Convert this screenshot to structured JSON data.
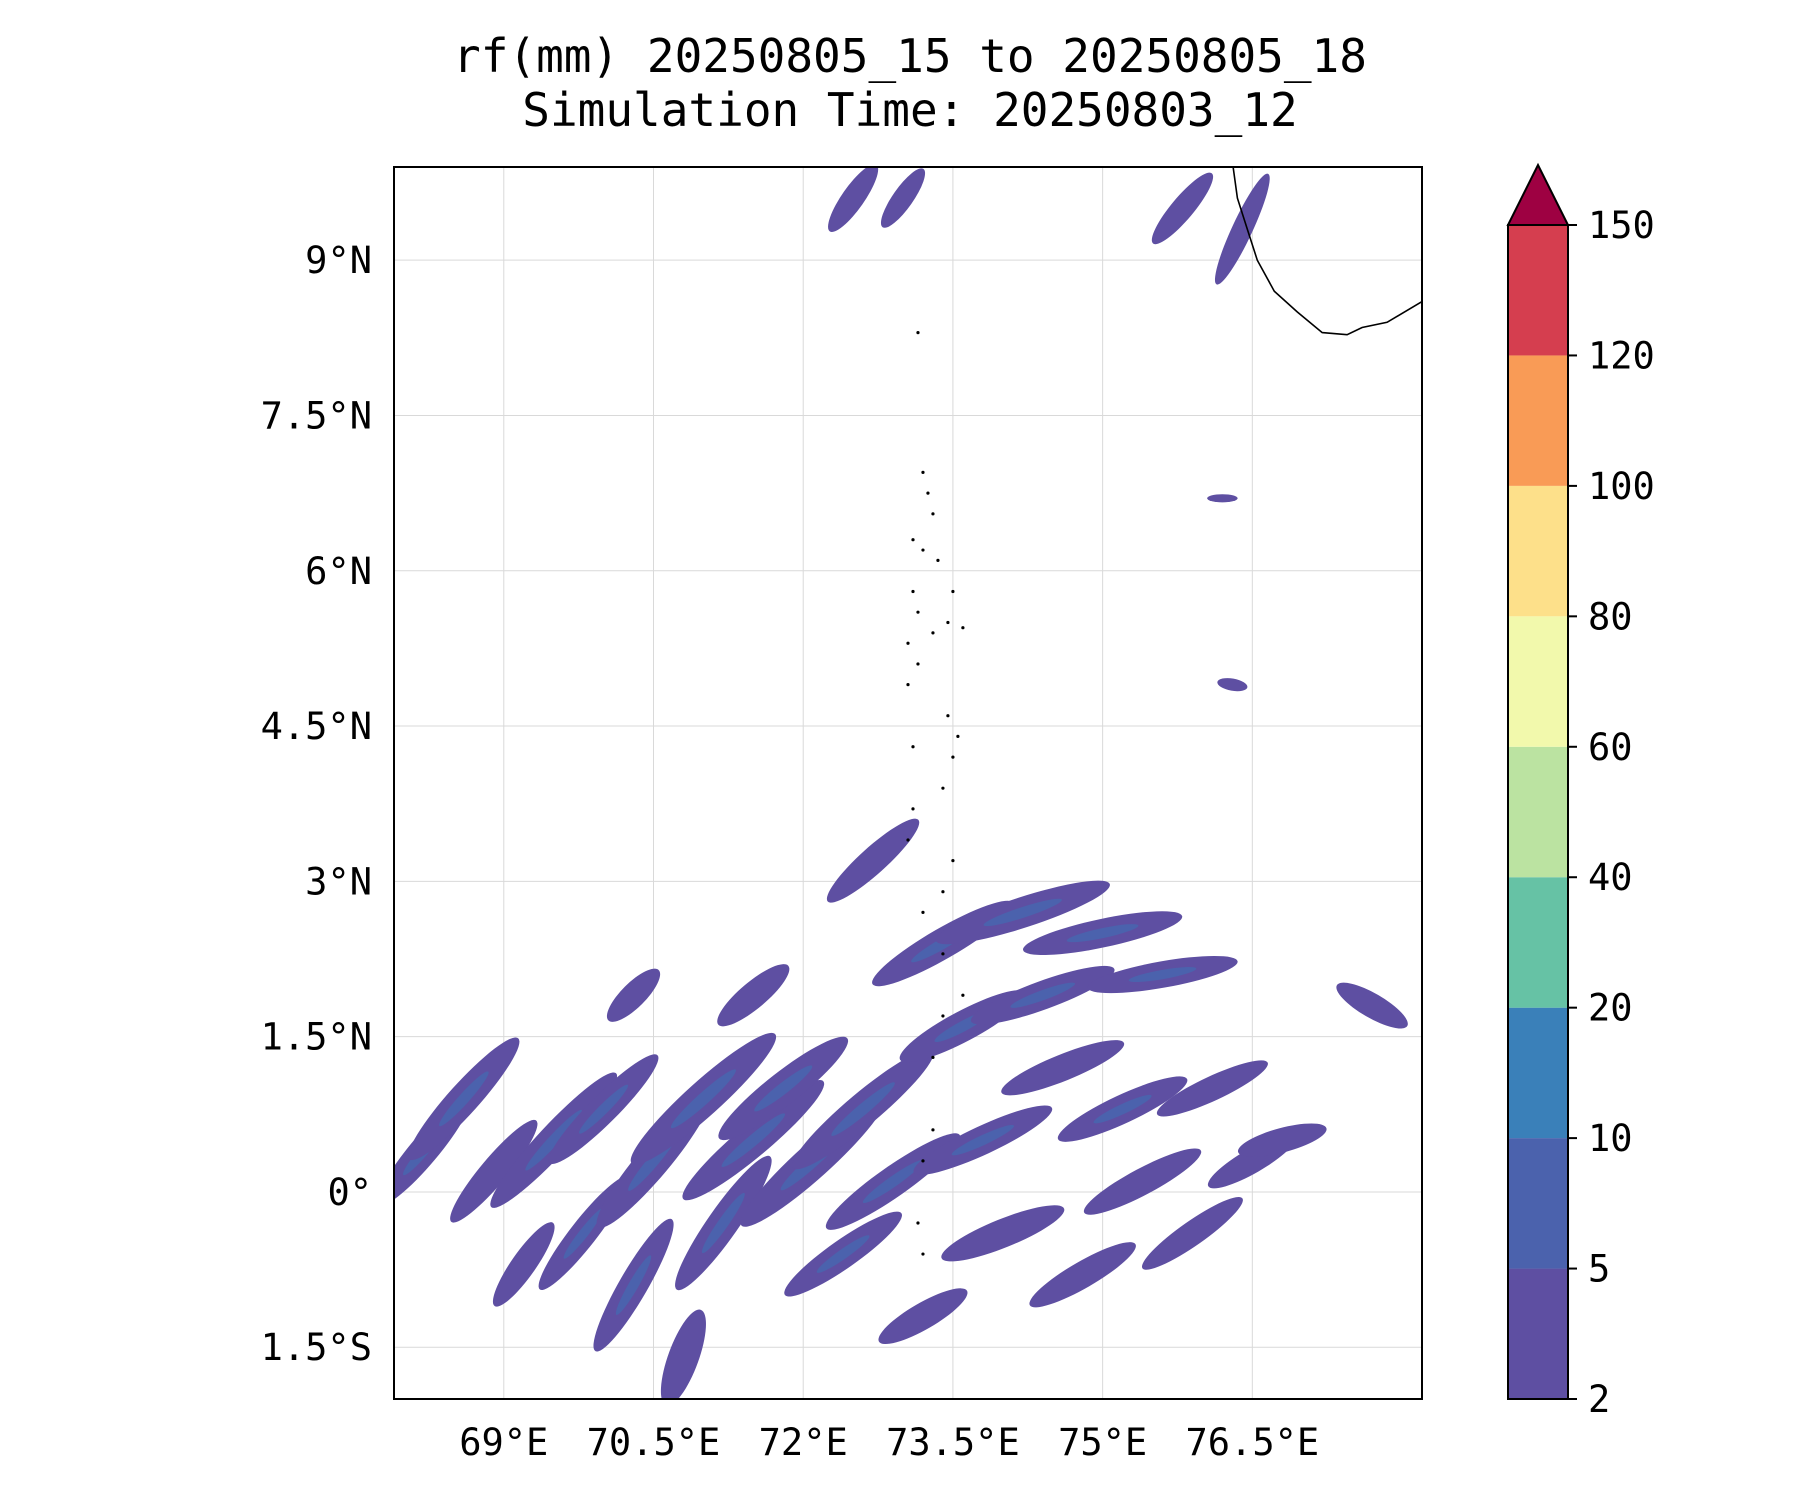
{
  "chart_data": {
    "type": "heatmap",
    "title": "rf(mm) 20250805_15 to 20250805_18",
    "subtitle": "Simulation Time: 20250803_12",
    "variable": "rf",
    "unit": "mm",
    "xlim": [
      67.9,
      78.2
    ],
    "ylim": [
      -2.0,
      9.9
    ],
    "x_ticks": [
      {
        "value": 69,
        "label": "69°E"
      },
      {
        "value": 70.5,
        "label": "70.5°E"
      },
      {
        "value": 72,
        "label": "72°E"
      },
      {
        "value": 73.5,
        "label": "73.5°E"
      },
      {
        "value": 75,
        "label": "75°E"
      },
      {
        "value": 76.5,
        "label": "76.5°E"
      }
    ],
    "y_ticks": [
      {
        "value": 9,
        "label": "9°N"
      },
      {
        "value": 7.5,
        "label": "7.5°N"
      },
      {
        "value": 6,
        "label": "6°N"
      },
      {
        "value": 4.5,
        "label": "4.5°N"
      },
      {
        "value": 3,
        "label": "3°N"
      },
      {
        "value": 1.5,
        "label": "1.5°N"
      },
      {
        "value": 0,
        "label": "0°"
      },
      {
        "value": -1.5,
        "label": "1.5°S"
      }
    ],
    "grid": true,
    "colorbar": {
      "position": "right",
      "extend": "max",
      "levels": [
        2,
        5,
        10,
        20,
        40,
        60,
        80,
        100,
        120,
        150
      ],
      "labels": [
        "2",
        "5",
        "10",
        "20",
        "40",
        "60",
        "80",
        "100",
        "120",
        "150"
      ],
      "colors": [
        "#5e4fa2",
        "#4b62ad",
        "#3a80b9",
        "#66c2a5",
        "#bbe3a1",
        "#f2f9ac",
        "#fde08a",
        "#f99b56",
        "#d53e4f"
      ],
      "extend_color": "#9e0142"
    },
    "rain_bands": [
      {
        "lon": 68.2,
        "lat": 0.4,
        "len": 1.4,
        "w": 0.14,
        "angle": -50
      },
      {
        "lon": 68.6,
        "lat": 0.9,
        "len": 1.6,
        "w": 0.15,
        "angle": -48
      },
      {
        "lon": 68.9,
        "lat": 0.2,
        "len": 1.3,
        "w": 0.13,
        "angle": -50
      },
      {
        "lon": 69.2,
        "lat": -0.7,
        "len": 1.0,
        "w": 0.12,
        "angle": -55
      },
      {
        "lon": 69.5,
        "lat": 0.5,
        "len": 1.8,
        "w": 0.15,
        "angle": -47
      },
      {
        "lon": 69.8,
        "lat": -0.4,
        "len": 1.4,
        "w": 0.13,
        "angle": -52
      },
      {
        "lon": 70.0,
        "lat": 0.8,
        "len": 1.5,
        "w": 0.14,
        "angle": -45
      },
      {
        "lon": 70.3,
        "lat": -0.9,
        "len": 1.5,
        "w": 0.14,
        "angle": -60
      },
      {
        "lon": 70.5,
        "lat": 0.3,
        "len": 1.7,
        "w": 0.16,
        "angle": -50
      },
      {
        "lon": 70.8,
        "lat": -1.6,
        "len": 1.0,
        "w": 0.15,
        "angle": -70
      },
      {
        "lon": 71.0,
        "lat": 0.9,
        "len": 1.9,
        "w": 0.17,
        "angle": -42
      },
      {
        "lon": 71.2,
        "lat": -0.3,
        "len": 1.6,
        "w": 0.15,
        "angle": -55
      },
      {
        "lon": 71.5,
        "lat": 0.5,
        "len": 1.8,
        "w": 0.16,
        "angle": -40
      },
      {
        "lon": 71.8,
        "lat": 1.0,
        "len": 1.6,
        "w": 0.16,
        "angle": -38
      },
      {
        "lon": 72.1,
        "lat": 0.3,
        "len": 1.9,
        "w": 0.17,
        "angle": -42
      },
      {
        "lon": 72.4,
        "lat": -0.6,
        "len": 1.4,
        "w": 0.14,
        "angle": -35
      },
      {
        "lon": 72.6,
        "lat": 0.8,
        "len": 1.8,
        "w": 0.16,
        "angle": -40
      },
      {
        "lon": 72.9,
        "lat": 0.1,
        "len": 1.6,
        "w": 0.15,
        "angle": -35
      },
      {
        "lon": 73.2,
        "lat": -1.2,
        "len": 1.0,
        "w": 0.13,
        "angle": -30
      },
      {
        "lon": 73.4,
        "lat": 2.4,
        "len": 1.6,
        "w": 0.15,
        "angle": -30
      },
      {
        "lon": 73.6,
        "lat": 1.6,
        "len": 1.4,
        "w": 0.15,
        "angle": -28
      },
      {
        "lon": 73.8,
        "lat": 0.5,
        "len": 1.5,
        "w": 0.14,
        "angle": -25
      },
      {
        "lon": 74.0,
        "lat": -0.4,
        "len": 1.3,
        "w": 0.14,
        "angle": -22
      },
      {
        "lon": 74.2,
        "lat": 2.7,
        "len": 1.8,
        "w": 0.15,
        "angle": -18
      },
      {
        "lon": 74.4,
        "lat": 1.9,
        "len": 1.5,
        "w": 0.14,
        "angle": -20
      },
      {
        "lon": 74.6,
        "lat": 1.2,
        "len": 1.3,
        "w": 0.13,
        "angle": -22
      },
      {
        "lon": 74.8,
        "lat": -0.8,
        "len": 1.2,
        "w": 0.13,
        "angle": -30
      },
      {
        "lon": 75.0,
        "lat": 2.5,
        "len": 1.6,
        "w": 0.14,
        "angle": -12
      },
      {
        "lon": 75.2,
        "lat": 0.8,
        "len": 1.4,
        "w": 0.14,
        "angle": -25
      },
      {
        "lon": 75.4,
        "lat": 0.1,
        "len": 1.3,
        "w": 0.13,
        "angle": -28
      },
      {
        "lon": 75.6,
        "lat": 2.1,
        "len": 1.5,
        "w": 0.13,
        "angle": -10
      },
      {
        "lon": 75.9,
        "lat": -0.4,
        "len": 1.2,
        "w": 0.12,
        "angle": -35
      },
      {
        "lon": 76.1,
        "lat": 1.0,
        "len": 1.2,
        "w": 0.12,
        "angle": -25
      },
      {
        "lon": 76.5,
        "lat": 0.3,
        "len": 1.0,
        "w": 0.12,
        "angle": -30
      },
      {
        "lon": 72.7,
        "lat": 3.2,
        "len": 1.2,
        "w": 0.13,
        "angle": -42
      },
      {
        "lon": 76.8,
        "lat": 0.5,
        "len": 0.9,
        "w": 0.12,
        "angle": -15
      },
      {
        "lon": 77.7,
        "lat": 1.8,
        "len": 0.8,
        "w": 0.12,
        "angle": 30
      },
      {
        "lon": 71.5,
        "lat": 1.9,
        "len": 0.9,
        "w": 0.13,
        "angle": -40
      },
      {
        "lon": 70.3,
        "lat": 1.9,
        "len": 0.7,
        "w": 0.12,
        "angle": -45
      },
      {
        "lon": 72.5,
        "lat": 9.6,
        "len": 0.8,
        "w": 0.11,
        "angle": -55
      },
      {
        "lon": 73.0,
        "lat": 9.6,
        "len": 0.7,
        "w": 0.1,
        "angle": -55
      },
      {
        "lon": 75.8,
        "lat": 9.5,
        "len": 0.9,
        "w": 0.11,
        "angle": -50
      },
      {
        "lon": 76.4,
        "lat": 9.3,
        "len": 1.2,
        "w": 0.1,
        "angle": -65
      },
      {
        "lon": 76.3,
        "lat": 4.9,
        "len": 0.3,
        "w": 0.06,
        "angle": 10
      },
      {
        "lon": 76.2,
        "lat": 6.7,
        "len": 0.3,
        "w": 0.04,
        "angle": 0
      }
    ],
    "coastline": [
      [
        76.3,
        9.95
      ],
      [
        76.35,
        9.6
      ],
      [
        76.45,
        9.3
      ],
      [
        76.55,
        9.0
      ],
      [
        76.72,
        8.7
      ],
      [
        76.95,
        8.5
      ],
      [
        77.2,
        8.3
      ],
      [
        77.45,
        8.28
      ],
      [
        77.6,
        8.35
      ],
      [
        77.85,
        8.4
      ],
      [
        78.2,
        8.6
      ]
    ],
    "islands": [
      [
        73.15,
        8.3
      ],
      [
        73.2,
        6.95
      ],
      [
        73.25,
        6.75
      ],
      [
        73.3,
        6.55
      ],
      [
        73.1,
        6.3
      ],
      [
        73.2,
        6.2
      ],
      [
        73.35,
        6.1
      ],
      [
        73.1,
        5.8
      ],
      [
        73.15,
        5.6
      ],
      [
        73.5,
        5.8
      ],
      [
        73.45,
        5.5
      ],
      [
        73.6,
        5.45
      ],
      [
        73.3,
        5.4
      ],
      [
        73.05,
        5.3
      ],
      [
        73.15,
        5.1
      ],
      [
        73.05,
        4.9
      ],
      [
        73.45,
        4.6
      ],
      [
        73.55,
        4.4
      ],
      [
        73.5,
        4.2
      ],
      [
        73.1,
        4.3
      ],
      [
        73.4,
        3.9
      ],
      [
        73.1,
        3.7
      ],
      [
        73.05,
        3.4
      ],
      [
        73.5,
        3.2
      ],
      [
        73.4,
        2.9
      ],
      [
        73.2,
        2.7
      ],
      [
        73.4,
        2.3
      ],
      [
        73.6,
        1.9
      ],
      [
        73.4,
        1.7
      ],
      [
        73.3,
        1.3
      ],
      [
        73.3,
        0.6
      ],
      [
        73.2,
        0.3
      ],
      [
        73.15,
        -0.3
      ],
      [
        73.2,
        -0.6
      ]
    ]
  }
}
